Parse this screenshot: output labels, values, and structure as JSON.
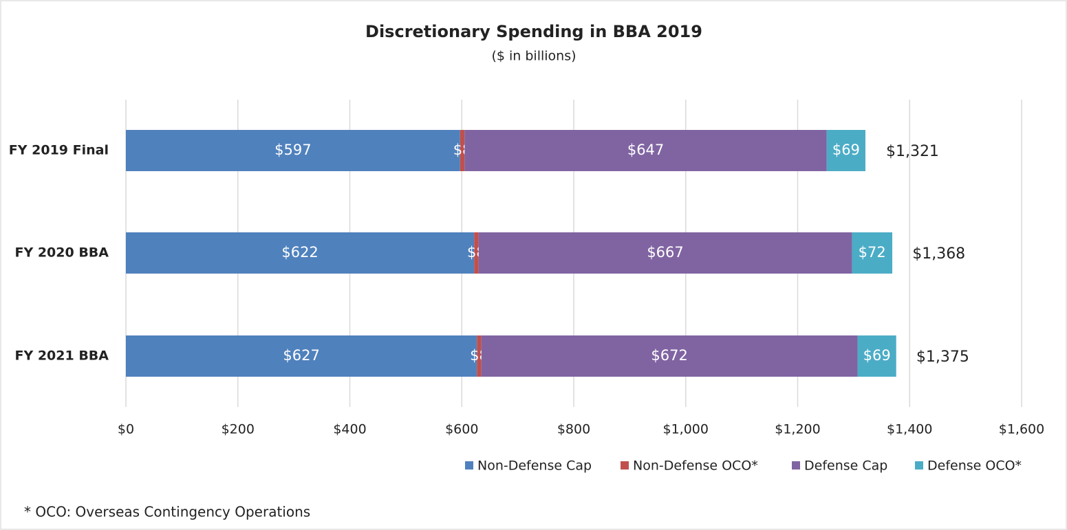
{
  "chart_data": {
    "type": "stacked-barh",
    "title": "Discretionary Spending in BBA 2019",
    "subtitle": "($ in billions)",
    "categories": [
      "FY 2019 Final",
      "FY 2020 BBA",
      "FY 2021 BBA"
    ],
    "series": [
      {
        "name": "Non-Defense Cap",
        "color": "#4f81bd",
        "values": [
          597,
          622,
          627
        ],
        "value_labels": [
          "$597",
          "$622",
          "$627"
        ]
      },
      {
        "name": "Non-Defense OCO*",
        "color": "#c0504d",
        "values": [
          8,
          8,
          8
        ],
        "value_labels": [
          "$8",
          "$8",
          "$8"
        ]
      },
      {
        "name": "Defense Cap",
        "color": "#8064a2",
        "values": [
          647,
          667,
          672
        ],
        "value_labels": [
          "$647",
          "$667",
          "$672"
        ]
      },
      {
        "name": "Defense OCO*",
        "color": "#4bacc6",
        "values": [
          69,
          72,
          69
        ],
        "value_labels": [
          "$69",
          "$72",
          "$69"
        ]
      }
    ],
    "totals": {
      "values": [
        1321,
        1368,
        1375
      ],
      "value_labels": [
        "$1,321",
        "$1,368",
        "$1,375"
      ]
    },
    "xlim": [
      0,
      1600
    ],
    "xticks": [
      {
        "value": 0,
        "label": "$0"
      },
      {
        "value": 200,
        "label": "$200"
      },
      {
        "value": 400,
        "label": "$400"
      },
      {
        "value": 600,
        "label": "$600"
      },
      {
        "value": 800,
        "label": "$800"
      },
      {
        "value": 1000,
        "label": "$1,000"
      },
      {
        "value": 1200,
        "label": "$1,200"
      },
      {
        "value": 1400,
        "label": "$1,400"
      },
      {
        "value": 1600,
        "label": "$1,600"
      }
    ],
    "grid": true,
    "legend": "bottom-right",
    "footnote": "* OCO: Overseas Contingency Operations"
  }
}
